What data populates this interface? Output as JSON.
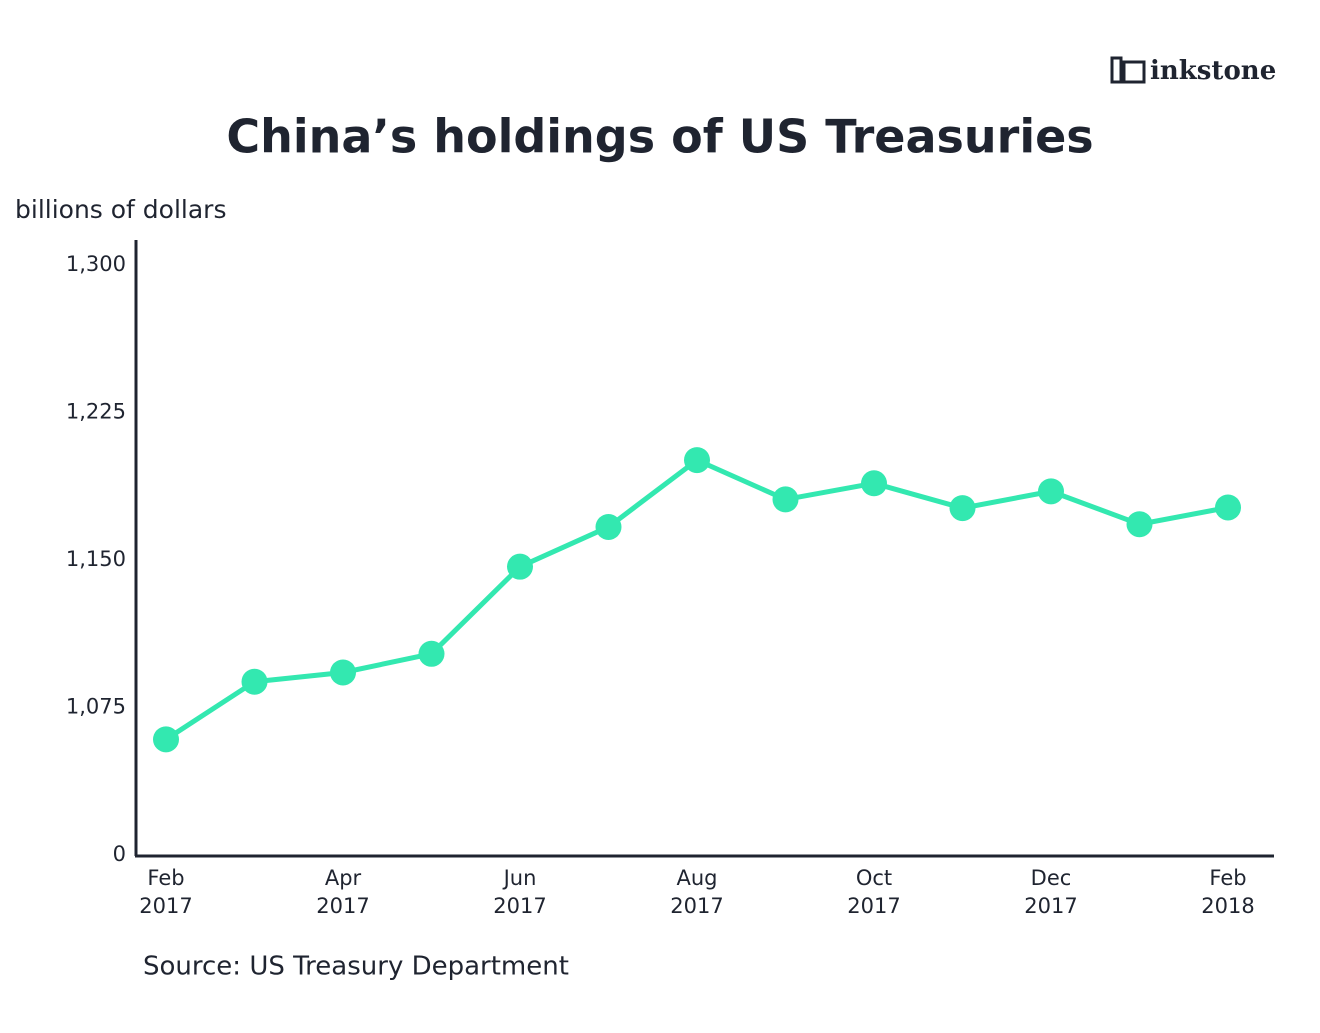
{
  "brand": "inkstone",
  "chart_data": {
    "type": "line",
    "title": "China’s holdings of US Treasuries",
    "y_label": "billions of dollars",
    "source": "Source: US Treasury Department",
    "categories": [
      "Feb\n2017",
      null,
      "Apr\n2017",
      null,
      "Jun\n2017",
      null,
      "Aug\n2017",
      null,
      "Oct\n2017",
      null,
      "Dec\n2017",
      null,
      "Feb\n2018"
    ],
    "series": [
      {
        "name": "China",
        "color": "#33e8b0",
        "values": [
          1058.8,
          1088.1,
          1092.8,
          1102.3,
          1146.6,
          1166.8,
          1200.8,
          1180.8,
          1189.0,
          1176.4,
          1184.9,
          1168.2,
          1176.7
        ]
      }
    ],
    "ylim": [
      1000,
      1300
    ],
    "y_axis_break": true,
    "yticks": [
      0,
      {
        "value": 1075,
        "label": "1,075"
      },
      {
        "value": 1150,
        "label": "1,150"
      },
      {
        "value": 1225,
        "label": "1,225"
      },
      {
        "value": 1300,
        "label": "1,300"
      }
    ],
    "grid": false
  }
}
